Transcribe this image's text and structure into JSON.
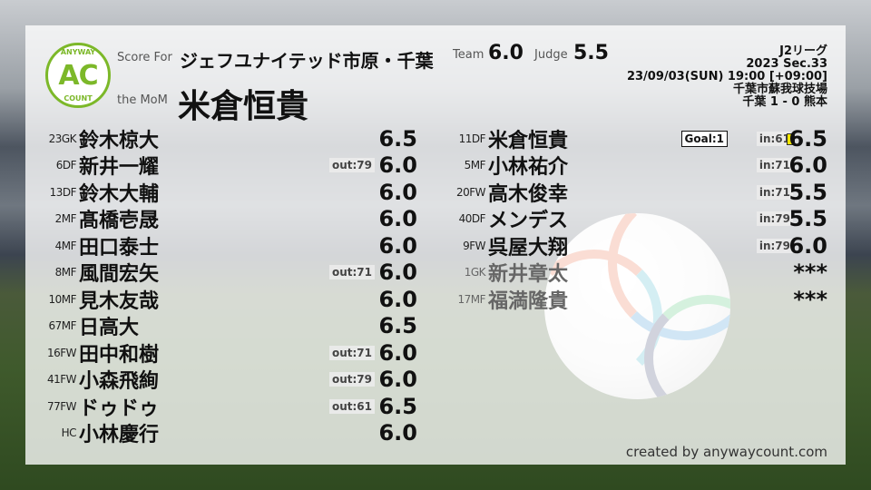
{
  "logo": {
    "top": "ANYWAY",
    "center": "AC",
    "bottom": "COUNT",
    "color": "#7cb829"
  },
  "header": {
    "score_for_label": "Score For",
    "team_name": "ジェフユナイテッド市原・千葉",
    "mom_label": "the MoM",
    "mom_name": "米倉恒貴",
    "team_label": "Team",
    "team_score": "6.0",
    "judge_label": "Judge",
    "judge_score": "5.5"
  },
  "match": {
    "league": "J2リーグ",
    "section": "2023 Sec.33",
    "datetime": "23/09/03(SUN) 19:00 [+09:00]",
    "venue": "千葉市蘇我球技場",
    "result": "千葉 1 - 0 熊本"
  },
  "starters": [
    {
      "pos": "23GK",
      "name": "鈴木椋大",
      "score": "6.5",
      "tag": ""
    },
    {
      "pos": "6DF",
      "name": "新井一耀",
      "score": "6.0",
      "tag": "out:79"
    },
    {
      "pos": "13DF",
      "name": "鈴木大輔",
      "score": "6.0",
      "tag": ""
    },
    {
      "pos": "2MF",
      "name": "髙橋壱晟",
      "score": "6.0",
      "tag": ""
    },
    {
      "pos": "4MF",
      "name": "田口泰士",
      "score": "6.0",
      "tag": ""
    },
    {
      "pos": "8MF",
      "name": "風間宏矢",
      "score": "6.0",
      "tag": "out:71"
    },
    {
      "pos": "10MF",
      "name": "見木友哉",
      "score": "6.0",
      "tag": ""
    },
    {
      "pos": "67MF",
      "name": "日高大",
      "score": "6.5",
      "tag": ""
    },
    {
      "pos": "16FW",
      "name": "田中和樹",
      "score": "6.0",
      "tag": "out:71"
    },
    {
      "pos": "41FW",
      "name": "小森飛絢",
      "score": "6.0",
      "tag": "out:79"
    },
    {
      "pos": "77FW",
      "name": "ドゥドゥ",
      "score": "6.5",
      "tag": "out:61"
    },
    {
      "pos": "HC",
      "name": "小林慶行",
      "score": "6.0",
      "tag": ""
    }
  ],
  "subs": [
    {
      "pos": "11DF",
      "name": "米倉恒貴",
      "score": "6.5",
      "tag": "in:61",
      "goal": "Goal:1",
      "yellow_card": true
    },
    {
      "pos": "5MF",
      "name": "小林祐介",
      "score": "6.0",
      "tag": "in:71"
    },
    {
      "pos": "20FW",
      "name": "高木俊幸",
      "score": "5.5",
      "tag": "in:71"
    },
    {
      "pos": "40DF",
      "name": "メンデス",
      "score": "5.5",
      "tag": "in:79"
    },
    {
      "pos": "9FW",
      "name": "呉屋大翔",
      "score": "6.0",
      "tag": "in:79"
    },
    {
      "pos": "1GK",
      "name": "新井章太",
      "score": "***",
      "tag": "",
      "unused": true
    },
    {
      "pos": "17MF",
      "name": "福満隆貴",
      "score": "***",
      "tag": "",
      "unused": true
    }
  ],
  "footer": {
    "credit": "created by anywaycount.com"
  }
}
